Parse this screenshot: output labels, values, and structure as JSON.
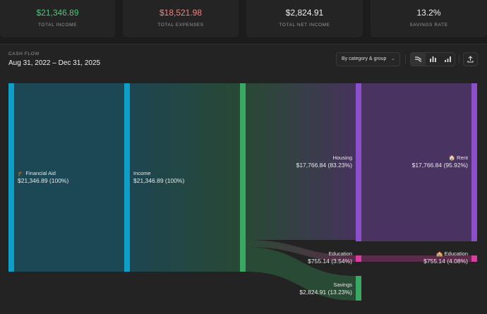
{
  "stats": [
    {
      "value": "$21,346.89",
      "label": "TOTAL INCOME",
      "color": "#4cc67a"
    },
    {
      "value": "$18,521.98",
      "label": "TOTAL EXPENSES",
      "color": "#f08383"
    },
    {
      "value": "$2,824.91",
      "label": "TOTAL NET INCOME",
      "color": "#f0f0f0"
    },
    {
      "value": "13.2%",
      "label": "SAVINGS RATE",
      "color": "#f0f0f0"
    }
  ],
  "cashflow": {
    "section_label": "CASH FLOW",
    "date_range": "Aug 31, 2022 – Dec 31, 2025",
    "grouping_select": "By category & group",
    "toolbar_icons": [
      "sankey-view-icon",
      "bar-chart-icon",
      "column-chart-icon",
      "export-icon"
    ]
  },
  "chart_data": {
    "type": "sankey",
    "nodes": [
      {
        "id": "financial-aid",
        "label": "🎓 Financial Aid",
        "value": "$21,346.89 (100%)",
        "color": "#0e9fc9"
      },
      {
        "id": "income",
        "label": "Income",
        "value": "$21,346.89 (100%)",
        "color": "#0e9fc9"
      },
      {
        "id": "cash-flow",
        "label": "",
        "value": "",
        "color": "#38a862"
      },
      {
        "id": "housing",
        "label": "Housing",
        "value": "$17,766.84 (83.23%)",
        "color": "#8a4fc9"
      },
      {
        "id": "education-group",
        "label": "Education",
        "value": "$755.14 (3.54%)",
        "color": "#d83ea0"
      },
      {
        "id": "savings",
        "label": "Savings",
        "value": "$2,824.91 (13.23%)",
        "color": "#38a862"
      },
      {
        "id": "rent",
        "label": "🏠 Rent",
        "value": "$17,766.84 (95.92%)",
        "color": "#8a4fc9"
      },
      {
        "id": "education-cat",
        "label": "🏫 Education",
        "value": "$755.14 (4.08%)",
        "color": "#d83ea0"
      }
    ],
    "links": [
      {
        "source": "financial-aid",
        "target": "income",
        "value": 21346.89
      },
      {
        "source": "income",
        "target": "cash-flow",
        "value": 21346.89
      },
      {
        "source": "cash-flow",
        "target": "housing",
        "value": 17766.84
      },
      {
        "source": "cash-flow",
        "target": "education-group",
        "value": 755.14
      },
      {
        "source": "cash-flow",
        "target": "savings",
        "value": 2824.91
      },
      {
        "source": "housing",
        "target": "rent",
        "value": 17766.84
      },
      {
        "source": "education-group",
        "target": "education-cat",
        "value": 755.14
      }
    ]
  }
}
